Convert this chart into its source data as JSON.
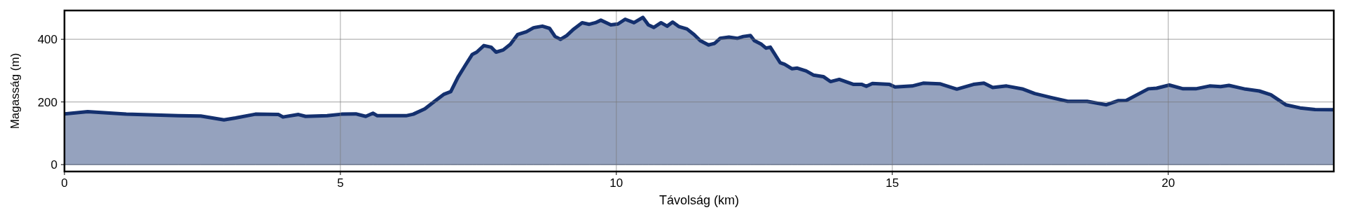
{
  "chart_data": {
    "type": "area",
    "xlabel": "Távolság (km)",
    "ylabel": "Magasság (m)",
    "x": [
      0,
      0.42,
      1.12,
      2.06,
      2.47,
      2.89,
      3.1,
      3.46,
      3.88,
      3.96,
      4.24,
      4.37,
      4.76,
      5.02,
      5.28,
      5.46,
      5.59,
      5.67,
      5.93,
      6.19,
      6.32,
      6.53,
      6.69,
      6.87,
      7.0,
      7.13,
      7.26,
      7.39,
      7.47,
      7.6,
      7.73,
      7.82,
      7.95,
      8.08,
      8.21,
      8.37,
      8.5,
      8.66,
      8.79,
      8.89,
      8.99,
      9.1,
      9.23,
      9.38,
      9.51,
      9.62,
      9.72,
      9.9,
      10.03,
      10.16,
      10.32,
      10.48,
      10.58,
      10.68,
      10.81,
      10.92,
      11.02,
      11.13,
      11.28,
      11.41,
      11.52,
      11.67,
      11.78,
      11.88,
      12.04,
      12.19,
      12.3,
      12.43,
      12.5,
      12.63,
      12.71,
      12.79,
      12.97,
      13.05,
      13.18,
      13.28,
      13.44,
      13.57,
      13.75,
      13.88,
      14.04,
      14.3,
      14.45,
      14.53,
      14.64,
      14.95,
      15.05,
      15.36,
      15.56,
      15.86,
      16.17,
      16.47,
      16.66,
      16.82,
      17.07,
      17.37,
      17.58,
      17.88,
      18.18,
      18.53,
      18.88,
      19.09,
      19.24,
      19.64,
      19.79,
      20.02,
      20.27,
      20.5,
      20.75,
      20.95,
      21.1,
      21.25,
      21.4,
      21.65,
      21.86,
      22.13,
      22.39,
      22.66,
      23.0
    ],
    "series": [
      {
        "color": "#14306e",
        "values": [
          162,
          169,
          161,
          156,
          155,
          143,
          149,
          161,
          160,
          152,
          160,
          154,
          156,
          161,
          162,
          154,
          164,
          156,
          156,
          156,
          161,
          178,
          200,
          224,
          233,
          279,
          316,
          352,
          359,
          380,
          375,
          359,
          366,
          384,
          415,
          424,
          437,
          442,
          435,
          409,
          400,
          412,
          433,
          453,
          448,
          453,
          461,
          446,
          449,
          464,
          453,
          470,
          446,
          438,
          453,
          442,
          455,
          441,
          433,
          415,
          396,
          382,
          387,
          403,
          407,
          403,
          409,
          412,
          396,
          384,
          372,
          375,
          325,
          320,
          306,
          308,
          299,
          286,
          281,
          265,
          272,
          256,
          256,
          250,
          259,
          256,
          248,
          251,
          260,
          258,
          241,
          256,
          260,
          246,
          251,
          241,
          227,
          214,
          202,
          202,
          191,
          204,
          205,
          242,
          244,
          254,
          242,
          242,
          251,
          249,
          253,
          247,
          241,
          235,
          223,
          191,
          181,
          176,
          175
        ]
      }
    ],
    "xlim": [
      0,
      23
    ],
    "ylim": [
      -22,
      492
    ],
    "xticks": [
      0,
      5,
      10,
      15,
      20
    ],
    "yticks": [
      0,
      200,
      400
    ],
    "grid": true
  }
}
